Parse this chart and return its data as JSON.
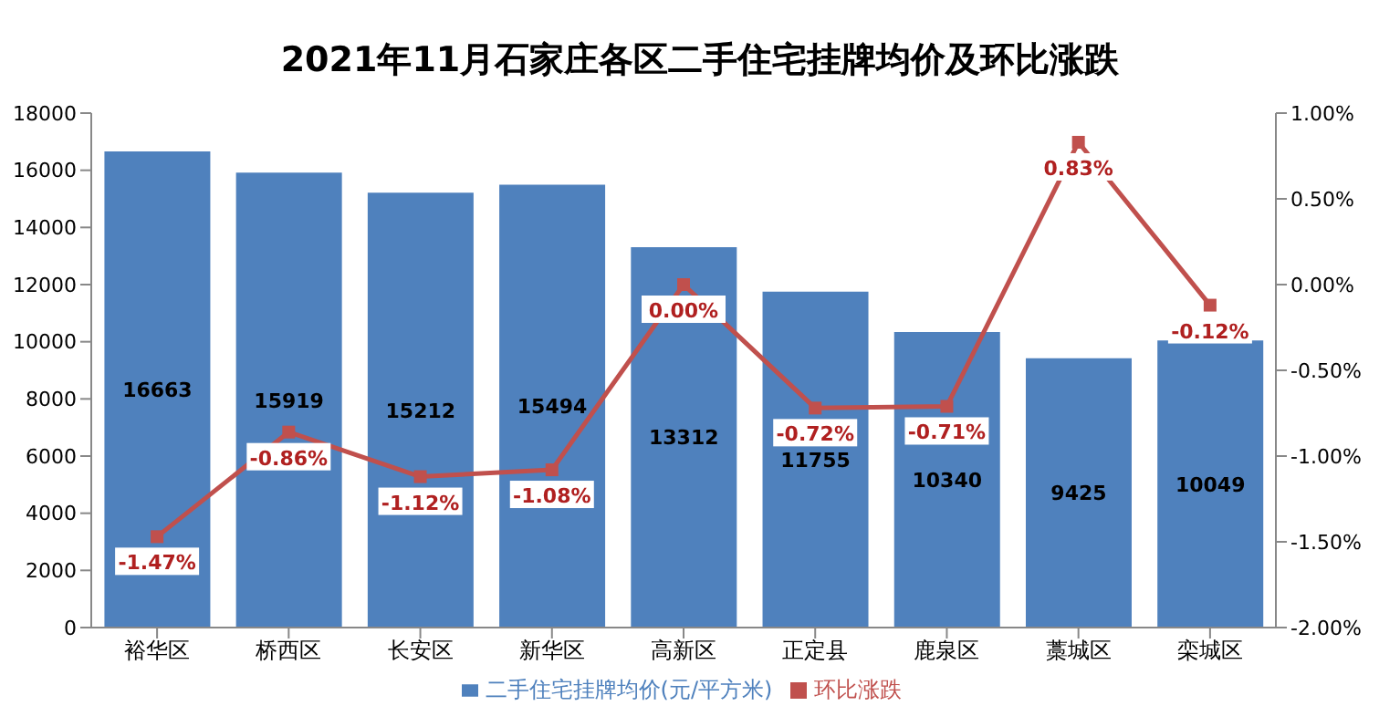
{
  "chart_data": {
    "type": "bar",
    "title": "2021年11月石家庄各区二手住宅挂牌均价及环比涨跌",
    "categories": [
      "裕华区",
      "桥西区",
      "长安区",
      "新华区",
      "高新区",
      "正定县",
      "鹿泉区",
      "藁城区",
      "栾城区"
    ],
    "series": [
      {
        "name": "二手住宅挂牌均价(元/平方米)",
        "color": "#4f81bd",
        "values": [
          16663,
          15919,
          15212,
          15494,
          13312,
          11755,
          10340,
          9425,
          10049
        ],
        "value_labels": [
          "16663",
          "15919",
          "15212",
          "15494",
          "13312",
          "11755",
          "10340",
          "9425",
          "10049"
        ]
      },
      {
        "name": "环比涨跌",
        "type": "line",
        "axis": "y2",
        "color": "#c0504d",
        "marker": "square",
        "values": [
          -1.47,
          -0.86,
          -1.12,
          -1.08,
          0.0,
          -0.72,
          -0.71,
          0.83,
          -0.12
        ],
        "value_labels": [
          "-1.47%",
          "-0.86%",
          "-1.12%",
          "-1.08%",
          "0.00%",
          "-0.72%",
          "-0.71%",
          "0.83%",
          "-0.12%"
        ]
      }
    ],
    "ylim": [
      0,
      18000
    ],
    "yticks": [
      0,
      2000,
      4000,
      6000,
      8000,
      10000,
      12000,
      14000,
      16000,
      18000
    ],
    "y2lim": [
      -2,
      1
    ],
    "y2ticks": [
      {
        "value": -2,
        "label": "-2.00%"
      },
      {
        "value": -1.5,
        "label": "-1.50%"
      },
      {
        "value": -1,
        "label": "-1.00%"
      },
      {
        "value": -0.5,
        "label": "-0.50%"
      },
      {
        "value": 0,
        "label": "0.00%"
      },
      {
        "value": 0.5,
        "label": "0.50%"
      },
      {
        "value": 1,
        "label": "1.00%"
      }
    ],
    "legend": "bottom"
  }
}
